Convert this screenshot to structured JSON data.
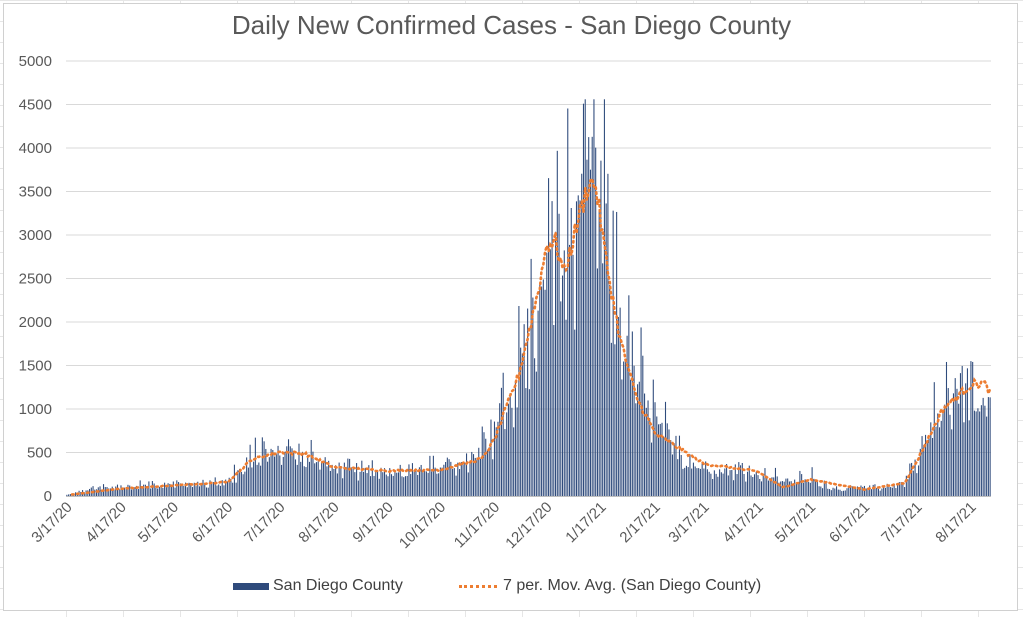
{
  "chart_data": {
    "type": "bar",
    "title": "Daily New Confirmed Cases - San Diego County",
    "xlabel": "",
    "ylabel": "",
    "ylim": [
      0,
      5000
    ],
    "yticks": [
      0,
      500,
      1000,
      1500,
      2000,
      2500,
      3000,
      3500,
      4000,
      4500,
      5000
    ],
    "x_tick_labels": [
      "3/17/20",
      "4/17/20",
      "5/17/20",
      "6/17/20",
      "7/17/20",
      "8/17/20",
      "9/17/20",
      "10/17/20",
      "11/17/20",
      "12/17/20",
      "1/17/21",
      "2/17/21",
      "3/17/21",
      "4/17/21",
      "5/17/21",
      "6/17/21",
      "7/17/21",
      "8/17/21"
    ],
    "x_start_date": "2020-03-17",
    "grid": true,
    "legend_position": "bottom",
    "colors": {
      "bar": "#2f4b7c",
      "moving_avg": "#ed7d31",
      "grid": "#d9d9d9",
      "text": "#595959"
    },
    "series": [
      {
        "name": "San Diego County",
        "type": "bar"
      },
      {
        "name": "7 per. Mov. Avg. (San Diego County)",
        "type": "line",
        "style": "dotted"
      }
    ],
    "daily_cases_anchor_dates": [
      "3/17/20",
      "3/25/20",
      "4/2/20",
      "4/17/20",
      "5/1/20",
      "5/17/20",
      "6/1/20",
      "6/17/20",
      "6/25/20",
      "7/1/20",
      "7/8/20",
      "7/17/20",
      "7/25/20",
      "8/5/20",
      "8/17/20",
      "9/1/20",
      "9/17/20",
      "10/1/20",
      "10/17/20",
      "11/1/20",
      "11/10/20",
      "11/17/20",
      "11/25/20",
      "12/5/20",
      "12/12/20",
      "12/17/20",
      "12/22/20",
      "12/28/20",
      "1/2/21",
      "1/8/21",
      "1/13/21",
      "1/17/21",
      "1/22/21",
      "1/28/21",
      "2/5/21",
      "2/17/21",
      "3/1/21",
      "3/17/21",
      "4/1/21",
      "4/17/21",
      "5/1/21",
      "5/17/21",
      "6/1/21",
      "6/17/21",
      "7/1/21",
      "7/10/21",
      "7/17/21",
      "7/25/21",
      "8/1/21",
      "8/10/21",
      "8/17/21",
      "8/24/21",
      "8/28/21"
    ],
    "daily_cases_anchor_values": [
      10,
      50,
      90,
      90,
      120,
      130,
      130,
      170,
      260,
      400,
      480,
      500,
      500,
      420,
      320,
      280,
      290,
      300,
      320,
      360,
      480,
      720,
      1050,
      1600,
      2100,
      2500,
      2900,
      2700,
      3100,
      3500,
      3550,
      3350,
      2700,
      2000,
      1400,
      850,
      480,
      320,
      290,
      250,
      180,
      180,
      80,
      90,
      100,
      160,
      420,
      750,
      1000,
      1150,
      1250,
      1250,
      1150
    ],
    "moving_avg_anchor_dates": [
      "3/17/20",
      "4/17/20",
      "5/17/20",
      "6/17/20",
      "7/1/20",
      "7/17/20",
      "8/1/20",
      "8/17/20",
      "9/17/20",
      "10/17/20",
      "11/10/20",
      "11/17/20",
      "12/1/20",
      "12/12/20",
      "12/17/20",
      "12/22/20",
      "12/27/20",
      "1/3/21",
      "1/10/21",
      "1/14/21",
      "1/20/21",
      "1/28/21",
      "2/6/21",
      "2/17/21",
      "3/17/21",
      "4/17/21",
      "5/1/21",
      "5/17/21",
      "6/17/21",
      "7/10/21",
      "7/17/21",
      "8/1/21",
      "8/17/21",
      "8/24/21",
      "8/28/21"
    ],
    "moving_avg_anchor_values": [
      10,
      85,
      120,
      160,
      420,
      510,
      480,
      330,
      290,
      300,
      430,
      650,
      1400,
      2350,
      2900,
      2920,
      2550,
      3100,
      3600,
      3580,
      2700,
      1800,
      1150,
      720,
      370,
      280,
      100,
      190,
      75,
      150,
      400,
      1000,
      1280,
      1300,
      1200
    ]
  },
  "legend": {
    "series1_label": "San Diego County",
    "series2_label": "7 per. Mov. Avg. (San Diego County)"
  }
}
